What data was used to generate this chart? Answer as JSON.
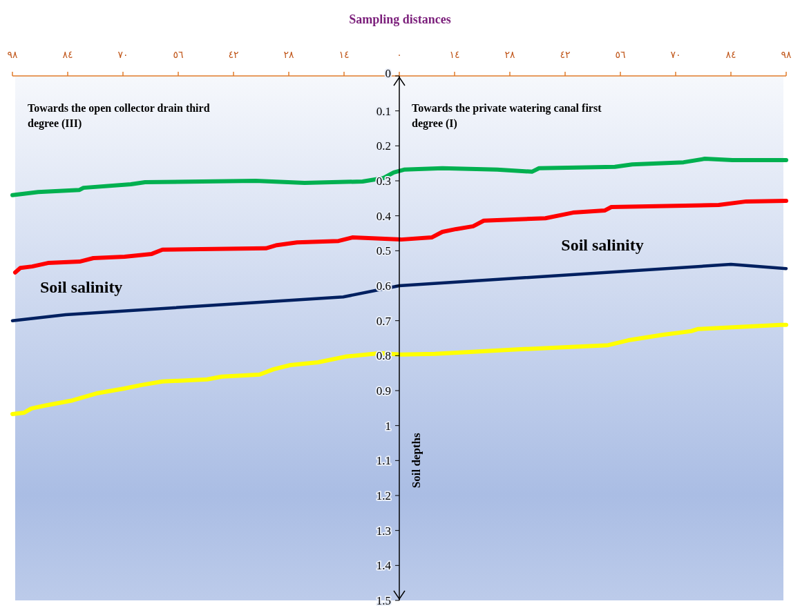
{
  "chart_data": {
    "type": "line",
    "title": "Sampling distances",
    "ylabel": "Soil depths",
    "xlim": [
      -98,
      98
    ],
    "xticks": [
      {
        "value": -98,
        "label": "٩٨"
      },
      {
        "value": -84,
        "label": "٨٤"
      },
      {
        "value": -70,
        "label": "٧٠"
      },
      {
        "value": -56,
        "label": "٥٦"
      },
      {
        "value": -42,
        "label": "٤٢"
      },
      {
        "value": -28,
        "label": "٢٨"
      },
      {
        "value": -14,
        "label": "١٤"
      },
      {
        "value": 0,
        "label": "٠"
      },
      {
        "value": 14,
        "label": "١٤"
      },
      {
        "value": 28,
        "label": "٢٨"
      },
      {
        "value": 42,
        "label": "٤٢"
      },
      {
        "value": 56,
        "label": "٥٦"
      },
      {
        "value": 70,
        "label": "٧٠"
      },
      {
        "value": 84,
        "label": "٨٤"
      },
      {
        "value": 98,
        "label": "٩٨"
      }
    ],
    "ylim": [
      1.5,
      0
    ],
    "yticks": [
      0,
      0.1,
      0.2,
      0.3,
      0.4,
      0.5,
      0.6,
      0.7,
      0.8,
      0.9,
      1,
      1.1,
      1.2,
      1.3,
      1.4,
      1.5
    ],
    "grid": false,
    "marker": "none",
    "line_style": "solid",
    "series": [
      {
        "color": "#00b050",
        "x": [
          -98,
          -91.5,
          -81,
          -80,
          -68,
          -64.4,
          -36.4,
          -24,
          -9.3,
          -4,
          -1.4,
          1.2,
          10.9,
          24.8,
          33.6,
          35.4,
          54.6,
          59,
          72,
          77.4,
          84.4,
          98
        ],
        "values": [
          0.341,
          0.332,
          0.326,
          0.32,
          0.31,
          0.304,
          0.3,
          0.306,
          0.302,
          0.292,
          0.276,
          0.268,
          0.264,
          0.268,
          0.274,
          0.264,
          0.26,
          0.253,
          0.247,
          0.237,
          0.241,
          0.241
        ]
      },
      {
        "color": "#ff0000",
        "x": [
          -97.3,
          -96,
          -93,
          -89,
          -81,
          -77.5,
          -69.6,
          -62.7,
          -60,
          -33.8,
          -31,
          -25.9,
          -15.4,
          -11.9,
          0.4,
          8.2,
          10.9,
          14.4,
          18.7,
          21.4,
          37,
          44,
          52,
          53.7,
          80.9,
          87.9,
          98
        ],
        "values": [
          0.562,
          0.549,
          0.545,
          0.535,
          0.531,
          0.521,
          0.517,
          0.509,
          0.497,
          0.493,
          0.484,
          0.476,
          0.472,
          0.462,
          0.468,
          0.462,
          0.446,
          0.438,
          0.43,
          0.414,
          0.407,
          0.391,
          0.385,
          0.375,
          0.369,
          0.359,
          0.357
        ]
      },
      {
        "color": "#002060",
        "x": [
          -98,
          -84.5,
          -14.2,
          0,
          84,
          98
        ],
        "values": [
          0.7,
          0.683,
          0.632,
          0.6,
          0.539,
          0.551
        ]
      },
      {
        "color": "#ffff00",
        "x": [
          -98,
          -95,
          -93.2,
          -89.8,
          -82.8,
          -76.7,
          -69.7,
          -65.3,
          -60,
          -48.7,
          -45,
          -35.4,
          -31.9,
          -27.6,
          -20.6,
          -13.7,
          -4.9,
          0.4,
          9,
          30,
          52.9,
          58,
          66.9,
          73.9,
          75.6,
          96.6,
          98
        ],
        "values": [
          0.967,
          0.963,
          0.951,
          0.943,
          0.928,
          0.908,
          0.894,
          0.884,
          0.874,
          0.868,
          0.86,
          0.854,
          0.839,
          0.827,
          0.819,
          0.803,
          0.793,
          0.797,
          0.795,
          0.782,
          0.77,
          0.756,
          0.74,
          0.73,
          0.724,
          0.712,
          0.712
        ]
      }
    ],
    "annotations": [
      "Towards the open collector drain third degree (III)",
      "Towards the private watering canal first degree (I)",
      "Soil salinity",
      "Soil salinity"
    ]
  }
}
